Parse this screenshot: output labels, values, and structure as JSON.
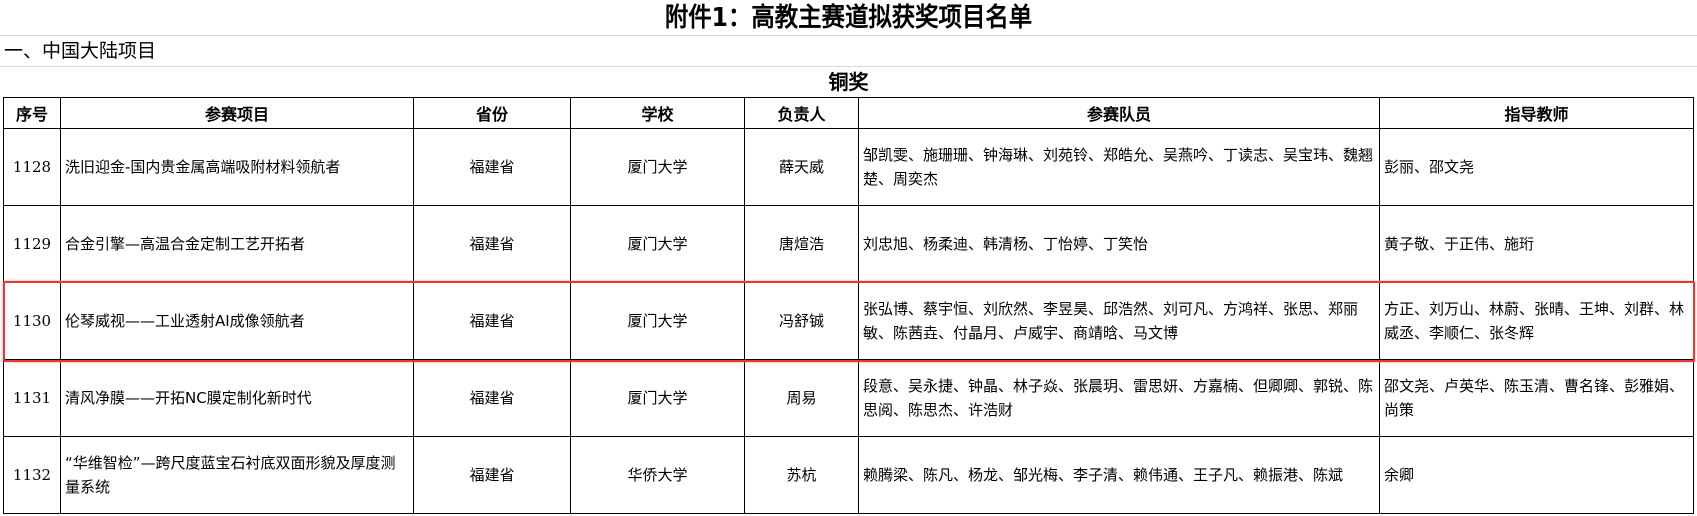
{
  "title": "附件1：高教主赛道拟获奖项目名单",
  "section": "一、中国大陆项目",
  "award": "铜奖",
  "headers": [
    "序号",
    "参赛项目",
    "省份",
    "学校",
    "负责人",
    "参赛队员",
    "指导教师"
  ],
  "rows": [
    {
      "seq": "1128",
      "project": "洗旧迎金-国内贵金属高端吸附材料领航者",
      "province": "福建省",
      "school": "厦门大学",
      "leader": "薛天威",
      "members": "邹凯雯、施珊珊、钟海琳、刘苑铃、郑皓允、吴燕吟、丁读志、吴宝玮、魏翘楚、周奕杰",
      "teachers": "彭丽、邵文尧"
    },
    {
      "seq": "1129",
      "project": "合金引擎—高温合金定制工艺开拓者",
      "province": "福建省",
      "school": "厦门大学",
      "leader": "唐煊浩",
      "members": "刘忠旭、杨柔迪、韩清杨、丁怡婷、丁笑怡",
      "teachers": "黄子敬、于正伟、施珩"
    },
    {
      "seq": "1130",
      "project": "伦琴威视——工业透射AI成像领航者",
      "province": "福建省",
      "school": "厦门大学",
      "leader": "冯舒铖",
      "members": "张弘博、蔡宇恒、刘欣然、李昱昊、邱浩然、刘可凡、方鸿祥、张思、郑丽敏、陈茜垚、付晶月、卢威宇、商靖晗、马文博",
      "teachers": "方正、刘万山、林蔚、张晴、王坤、刘群、林威丞、李顺仁、张冬辉"
    },
    {
      "seq": "1131",
      "project": "清风净膜——开拓NC膜定制化新时代",
      "province": "福建省",
      "school": "厦门大学",
      "leader": "周易",
      "members": "段意、吴永捷、钟晶、林子焱、张晨玥、雷思妍、方嘉楠、但卿卿、郭锐、陈思阅、陈思杰、许浩财",
      "teachers": "邵文尧、卢英华、陈玉清、曹名锋、彭雅娟、尚策"
    },
    {
      "seq": "1132",
      "project": "“华维智检”—跨尺度蓝宝石衬底双面形貌及厚度测量系统",
      "province": "福建省",
      "school": "华侨大学",
      "leader": "苏杭",
      "members": "赖腾梁、陈凡、杨龙、邹光梅、李子清、赖伟通、王子凡、赖振港、陈斌",
      "teachers": "余卿"
    }
  ],
  "highlight_color": "#e53935",
  "highlighted_seq": "1130"
}
